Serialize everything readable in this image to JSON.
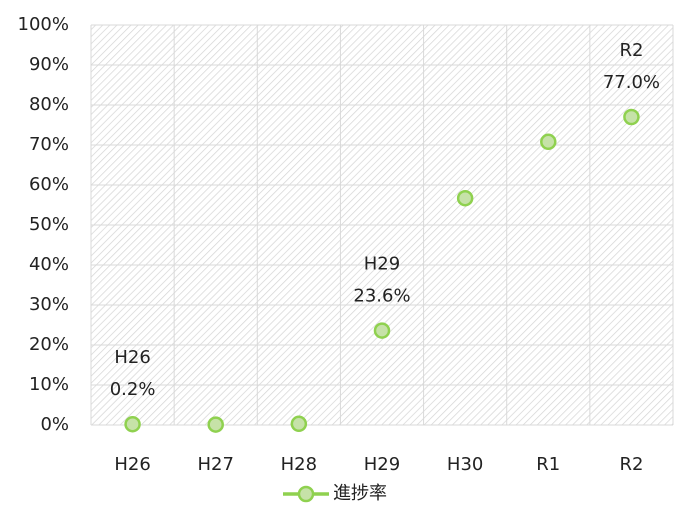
{
  "chart_data": {
    "type": "line",
    "categories": [
      "H26",
      "H27",
      "H28",
      "H29",
      "H30",
      "R1",
      "R2"
    ],
    "series": [
      {
        "name": "進捗率",
        "color": "#8fd14f",
        "marker_fill": "#c6e2a8",
        "values": [
          0.2,
          0.1,
          0.3,
          23.6,
          56.7,
          70.8,
          77.0
        ],
        "value_labels": [
          "0.2%",
          null,
          null,
          "23.6%",
          null,
          null,
          "77.0%"
        ]
      }
    ],
    "ylim": [
      0,
      100
    ],
    "yticks": [
      {
        "value": 0,
        "label": "0%"
      },
      {
        "value": 10,
        "label": "10%"
      },
      {
        "value": 20,
        "label": "20%"
      },
      {
        "value": 30,
        "label": "30%"
      },
      {
        "value": 40,
        "label": "40%"
      },
      {
        "value": 50,
        "label": "50%"
      },
      {
        "value": 60,
        "label": "60%"
      },
      {
        "value": 70,
        "label": "70%"
      },
      {
        "value": 80,
        "label": "80%"
      },
      {
        "value": 90,
        "label": "90%"
      },
      {
        "value": 100,
        "label": "100%"
      }
    ],
    "grid": true,
    "legend": "bottom"
  }
}
